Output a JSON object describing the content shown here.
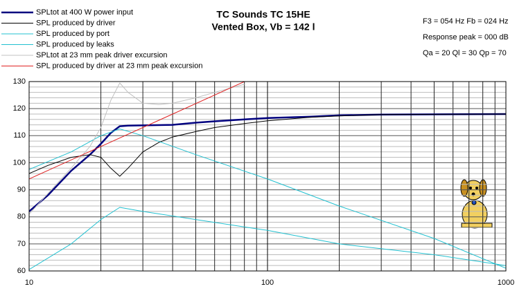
{
  "chart_data": {
    "type": "line",
    "title": "TC Sounds TC 15HE",
    "subtitle": "Vented Box, Vb = 142 l",
    "annotations": [
      "F3 = 054 Hz  Fb = 024 Hz",
      "Response peak = 000 dB",
      "Qa = 20  Ql = 30  Qp = 70"
    ],
    "x_log": true,
    "xlim": [
      10,
      1000
    ],
    "xticks": [
      10,
      100,
      1000
    ],
    "xminorticks": [
      20,
      30,
      40,
      50,
      60,
      70,
      80,
      90,
      200,
      300,
      400,
      500,
      600,
      700,
      800,
      900
    ],
    "ylim": [
      60,
      130
    ],
    "yticks": [
      60,
      70,
      80,
      90,
      100,
      110,
      120,
      130
    ],
    "yminorticks": [
      62,
      64,
      66,
      68,
      72,
      74,
      76,
      78,
      82,
      84,
      86,
      88,
      92,
      94,
      96,
      98,
      102,
      104,
      106,
      108,
      112,
      114,
      116,
      118,
      122,
      124,
      126,
      128
    ],
    "grid": true,
    "series": [
      {
        "name": "SPLtot at 400 W power input",
        "color": "#00007f",
        "width": 2.5,
        "x": [
          10,
          12,
          15,
          18,
          20,
          22,
          24,
          26,
          30,
          40,
          50,
          60,
          80,
          100,
          150,
          200,
          300,
          1000
        ],
        "values": [
          82,
          88,
          97,
          103,
          107,
          111,
          113.5,
          113.7,
          113.8,
          114,
          114.8,
          115.3,
          116,
          116.5,
          117,
          117.5,
          117.8,
          118
        ]
      },
      {
        "name": "SPL produced by driver",
        "color": "#000000",
        "width": 1,
        "x": [
          10,
          12,
          15,
          18,
          20,
          22,
          24,
          26,
          30,
          35,
          40,
          50,
          60,
          80,
          100,
          150,
          200,
          300,
          1000
        ],
        "values": [
          96,
          99,
          102,
          103,
          102,
          98,
          95,
          98,
          104,
          107.5,
          109.5,
          111.5,
          113,
          114.5,
          115.5,
          116.8,
          117.3,
          117.8,
          118
        ]
      },
      {
        "name": "SPL produced by port",
        "color": "#20c0d0",
        "width": 1,
        "x": [
          10,
          15,
          20,
          24,
          30,
          50,
          100,
          200,
          500,
          1000
        ],
        "values": [
          97.5,
          104,
          110,
          112.5,
          110,
          103,
          94,
          84,
          72,
          61
        ]
      },
      {
        "name": "SPL produced by leaks",
        "color": "#20c0d0",
        "width": 1,
        "x": [
          10,
          15,
          20,
          24,
          30,
          50,
          100,
          200,
          500,
          1000
        ],
        "values": [
          60.5,
          70,
          79,
          83.5,
          82,
          79,
          75,
          70,
          66,
          62
        ]
      },
      {
        "name": "SPLtot at 23 mm peak driver excursion",
        "color": "#c0c0c0",
        "width": 1,
        "x": [
          10,
          15,
          18,
          20,
          22,
          24,
          26,
          30,
          35,
          40,
          50,
          60,
          80
        ],
        "values": [
          81,
          98,
          106,
          113,
          123,
          129.5,
          126,
          122,
          121.5,
          122,
          124,
          126,
          129
        ]
      },
      {
        "name": "SPL produced by driver at 23 mm peak excursion",
        "color": "#e02020",
        "width": 1,
        "x": [
          10,
          20,
          40,
          80
        ],
        "values": [
          94,
          106,
          118,
          130
        ]
      }
    ]
  }
}
